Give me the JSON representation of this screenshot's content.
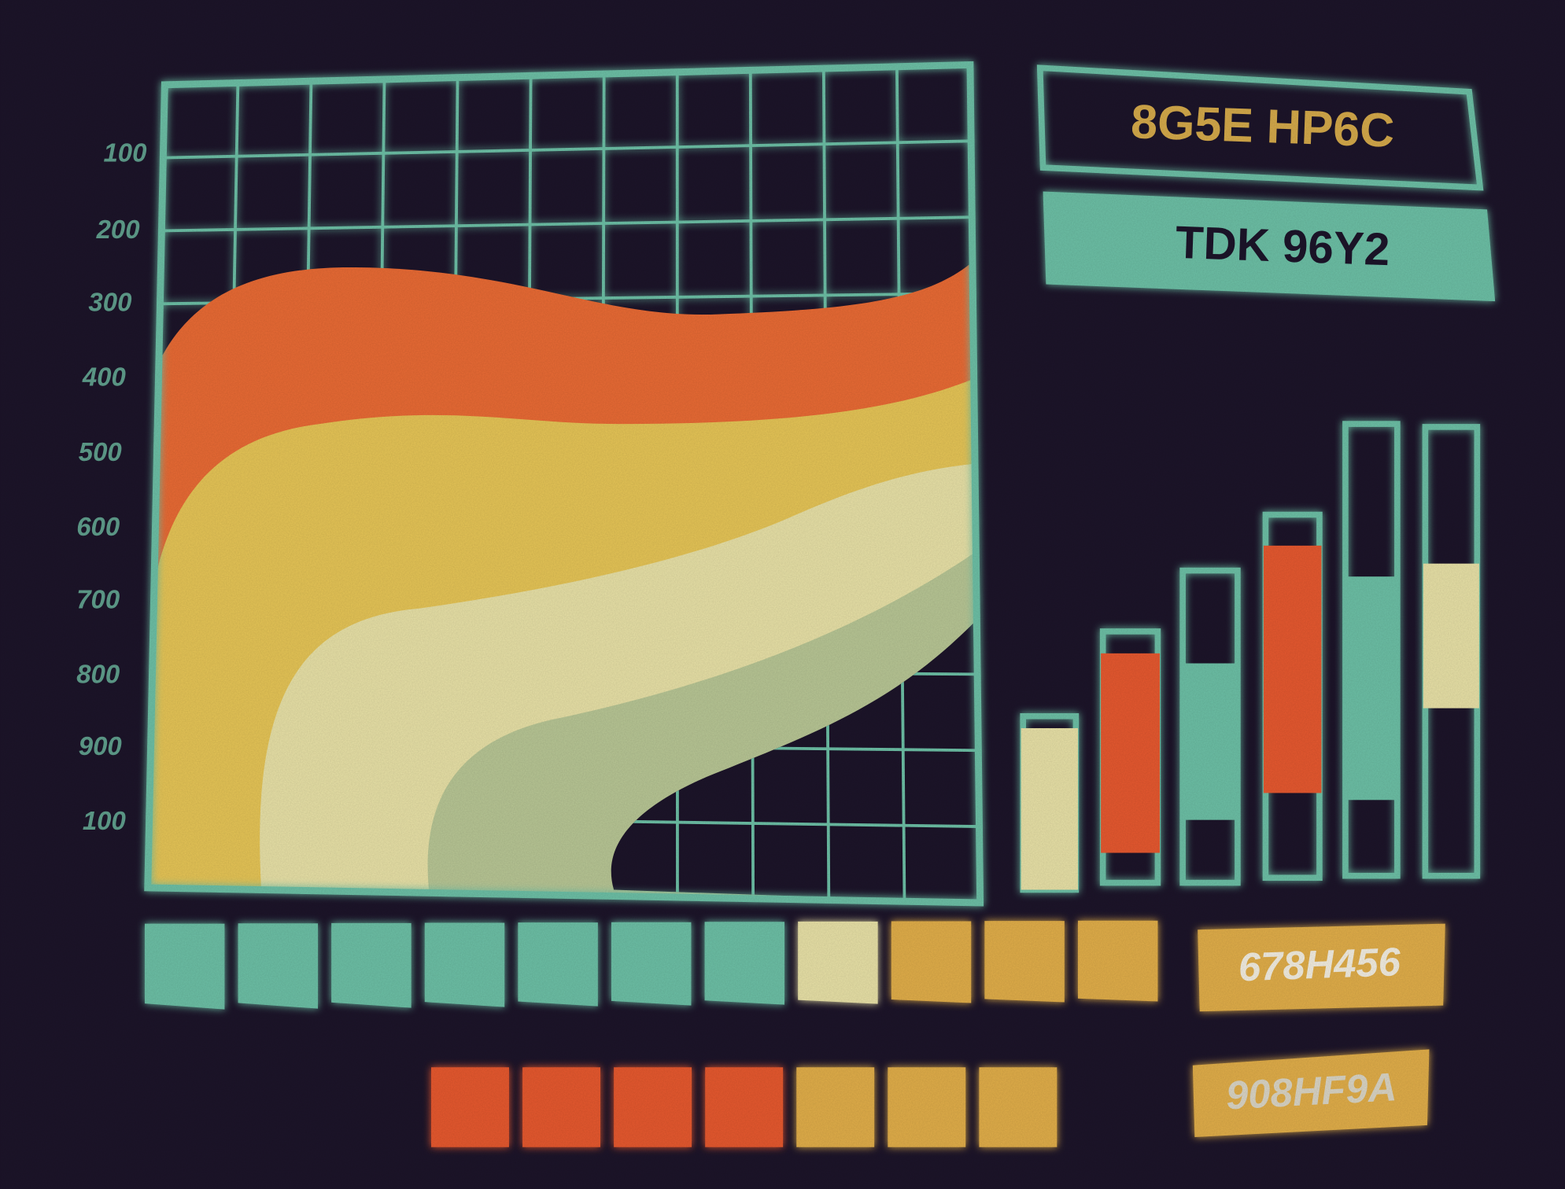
{
  "axis_labels": [
    "100",
    "200",
    "300",
    "400",
    "500",
    "600",
    "700",
    "800",
    "900",
    "100"
  ],
  "header": {
    "code": "8G5E HP6C",
    "model": "TDK 96Y2"
  },
  "readouts": [
    "678H456",
    "908HF9A"
  ]
}
